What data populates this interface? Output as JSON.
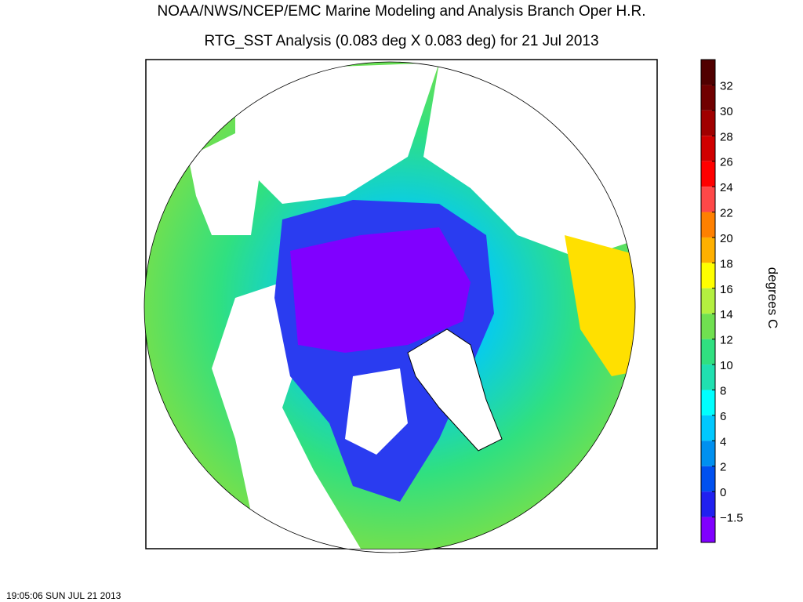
{
  "header": {
    "title": "NOAA/NWS/NCEP/EMC Marine Modeling and Analysis Branch Oper H.R.",
    "subtitle": "RTG_SST Analysis (0.083 deg X 0.083 deg) for 21 Jul 2013"
  },
  "colorbar": {
    "label": "degrees C",
    "ticks": [
      32,
      30,
      28,
      26,
      24,
      22,
      20,
      18,
      16,
      14,
      12,
      10,
      8,
      6,
      4,
      2,
      0,
      {
        "value": -1.5,
        "label": "−1.5"
      }
    ],
    "colors": [
      "#500000",
      "#700000",
      "#a00000",
      "#d00000",
      "#ff0000",
      "#ff4848",
      "#ff8000",
      "#ffb000",
      "#ffff00",
      "#b4f040",
      "#70e050",
      "#30e080",
      "#20e0b0",
      "#00ffff",
      "#00c8ff",
      "#0090f0",
      "#0050f0",
      "#2020f0",
      "#8000ff"
    ]
  },
  "footer": {
    "timestamp": "19:05:06  SUN JUL 21 2013"
  }
}
